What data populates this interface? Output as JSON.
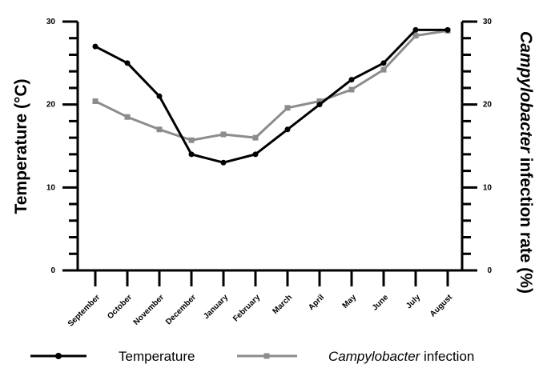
{
  "chart_data": {
    "type": "line",
    "categories": [
      "September",
      "October",
      "November",
      "December",
      "January",
      "February",
      "March",
      "April",
      "May",
      "June",
      "July",
      "August"
    ],
    "series": [
      {
        "name": "Temperature",
        "axis": "left",
        "color": "#000000",
        "marker": "circle",
        "values": [
          27,
          25,
          21,
          14,
          13,
          14,
          17,
          20,
          23,
          25,
          29,
          29
        ]
      },
      {
        "name": "Campylobacter infection",
        "axis": "right",
        "color": "#8c8c8c",
        "marker": "square",
        "values": [
          20.4,
          18.5,
          17,
          15.7,
          16.4,
          16,
          19.6,
          20.4,
          21.8,
          24.2,
          28.3,
          28.9
        ]
      }
    ],
    "ylabel_left": "Temperature (°C)",
    "ylabel_right_italic": "Campylobacter",
    "ylabel_right_rest": " infection rate  (%)",
    "ylim_left": [
      0,
      30
    ],
    "ylim_right": [
      0,
      30
    ],
    "yticks_labeled": [
      "0",
      "10",
      "20",
      "30"
    ],
    "ytick_values": [
      0,
      10,
      20,
      30
    ],
    "grid": false,
    "legend_position": "bottom",
    "legend": [
      {
        "label": "Temperature"
      },
      {
        "label_italic": "Campylobacter",
        "label_rest": " infection"
      }
    ]
  }
}
